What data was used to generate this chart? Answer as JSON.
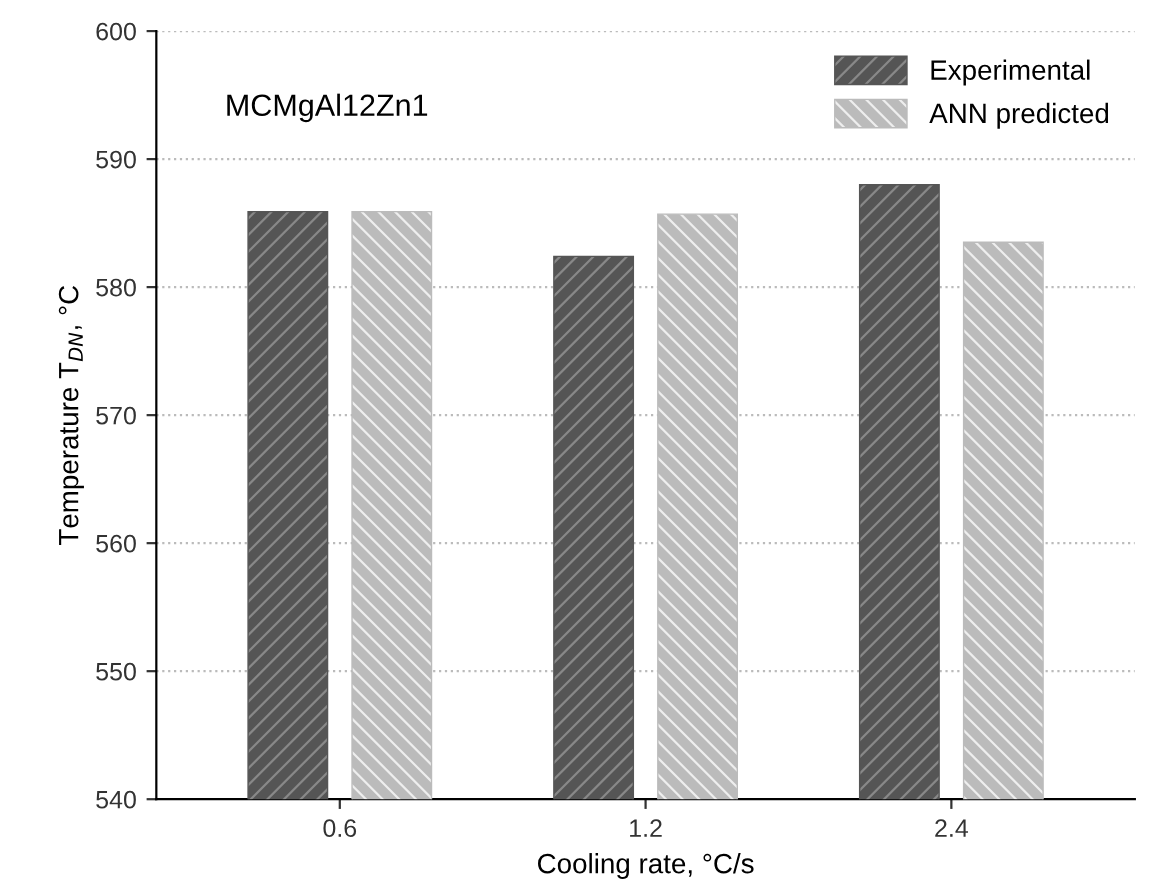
{
  "chart_data": {
    "type": "bar",
    "xlabel": "Cooling rate, °C/s",
    "ylabel": "Temperature T$_{DN}$, °C",
    "categories": [
      "0.6",
      "1.2",
      "2.4"
    ],
    "series": [
      {
        "name": "Experimental",
        "color": "#555555",
        "values": [
          585.9,
          582.4,
          588.0
        ]
      },
      {
        "name": "ANN predicted",
        "color": "#bbbbbb",
        "values": [
          585.9,
          585.7,
          583.5
        ]
      }
    ],
    "annotations": [
      "MCMgAl12Zn1"
    ],
    "ylim": [
      540,
      600
    ],
    "yticks": [
      540,
      550,
      560,
      570,
      580,
      590,
      600
    ],
    "grid": "y",
    "legend": "top right"
  }
}
